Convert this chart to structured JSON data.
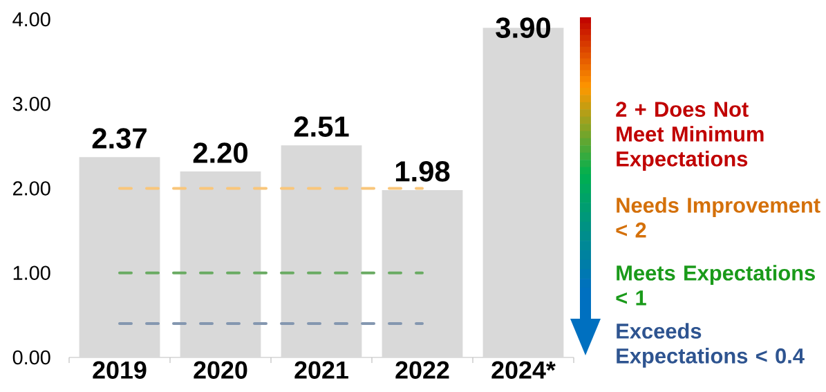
{
  "chart_data": {
    "type": "bar",
    "categories": [
      "2019",
      "2020",
      "2021",
      "2022",
      "2024*"
    ],
    "values": [
      2.37,
      2.2,
      2.51,
      1.98,
      3.9
    ],
    "value_labels": [
      "2.37",
      "2.20",
      "2.51",
      "1.98",
      "3.90"
    ],
    "color": "#d9d9d9",
    "ylim": [
      0,
      4
    ],
    "yticks": [
      {
        "value": 0,
        "label": "0.00"
      },
      {
        "value": 1,
        "label": "1.00"
      },
      {
        "value": 2,
        "label": "2.00"
      },
      {
        "value": 3,
        "label": "3.00"
      },
      {
        "value": 4,
        "label": "4.00"
      }
    ],
    "ref_lines": [
      {
        "axis": "y",
        "value": 2,
        "color": "#f9c67a",
        "line_style": "dashed"
      },
      {
        "axis": "y",
        "value": 1,
        "color": "#6aab63",
        "line_style": "dashed"
      },
      {
        "axis": "y",
        "value": 0.4,
        "color": "#8497b0",
        "line_style": "dashed"
      }
    ],
    "annotations": [
      "2 + Does Not Meet Minimum Expectations",
      "Needs Improvement < 2",
      "Meets Expectations < 1",
      "Exceeds Expectations < 0.4"
    ]
  }
}
